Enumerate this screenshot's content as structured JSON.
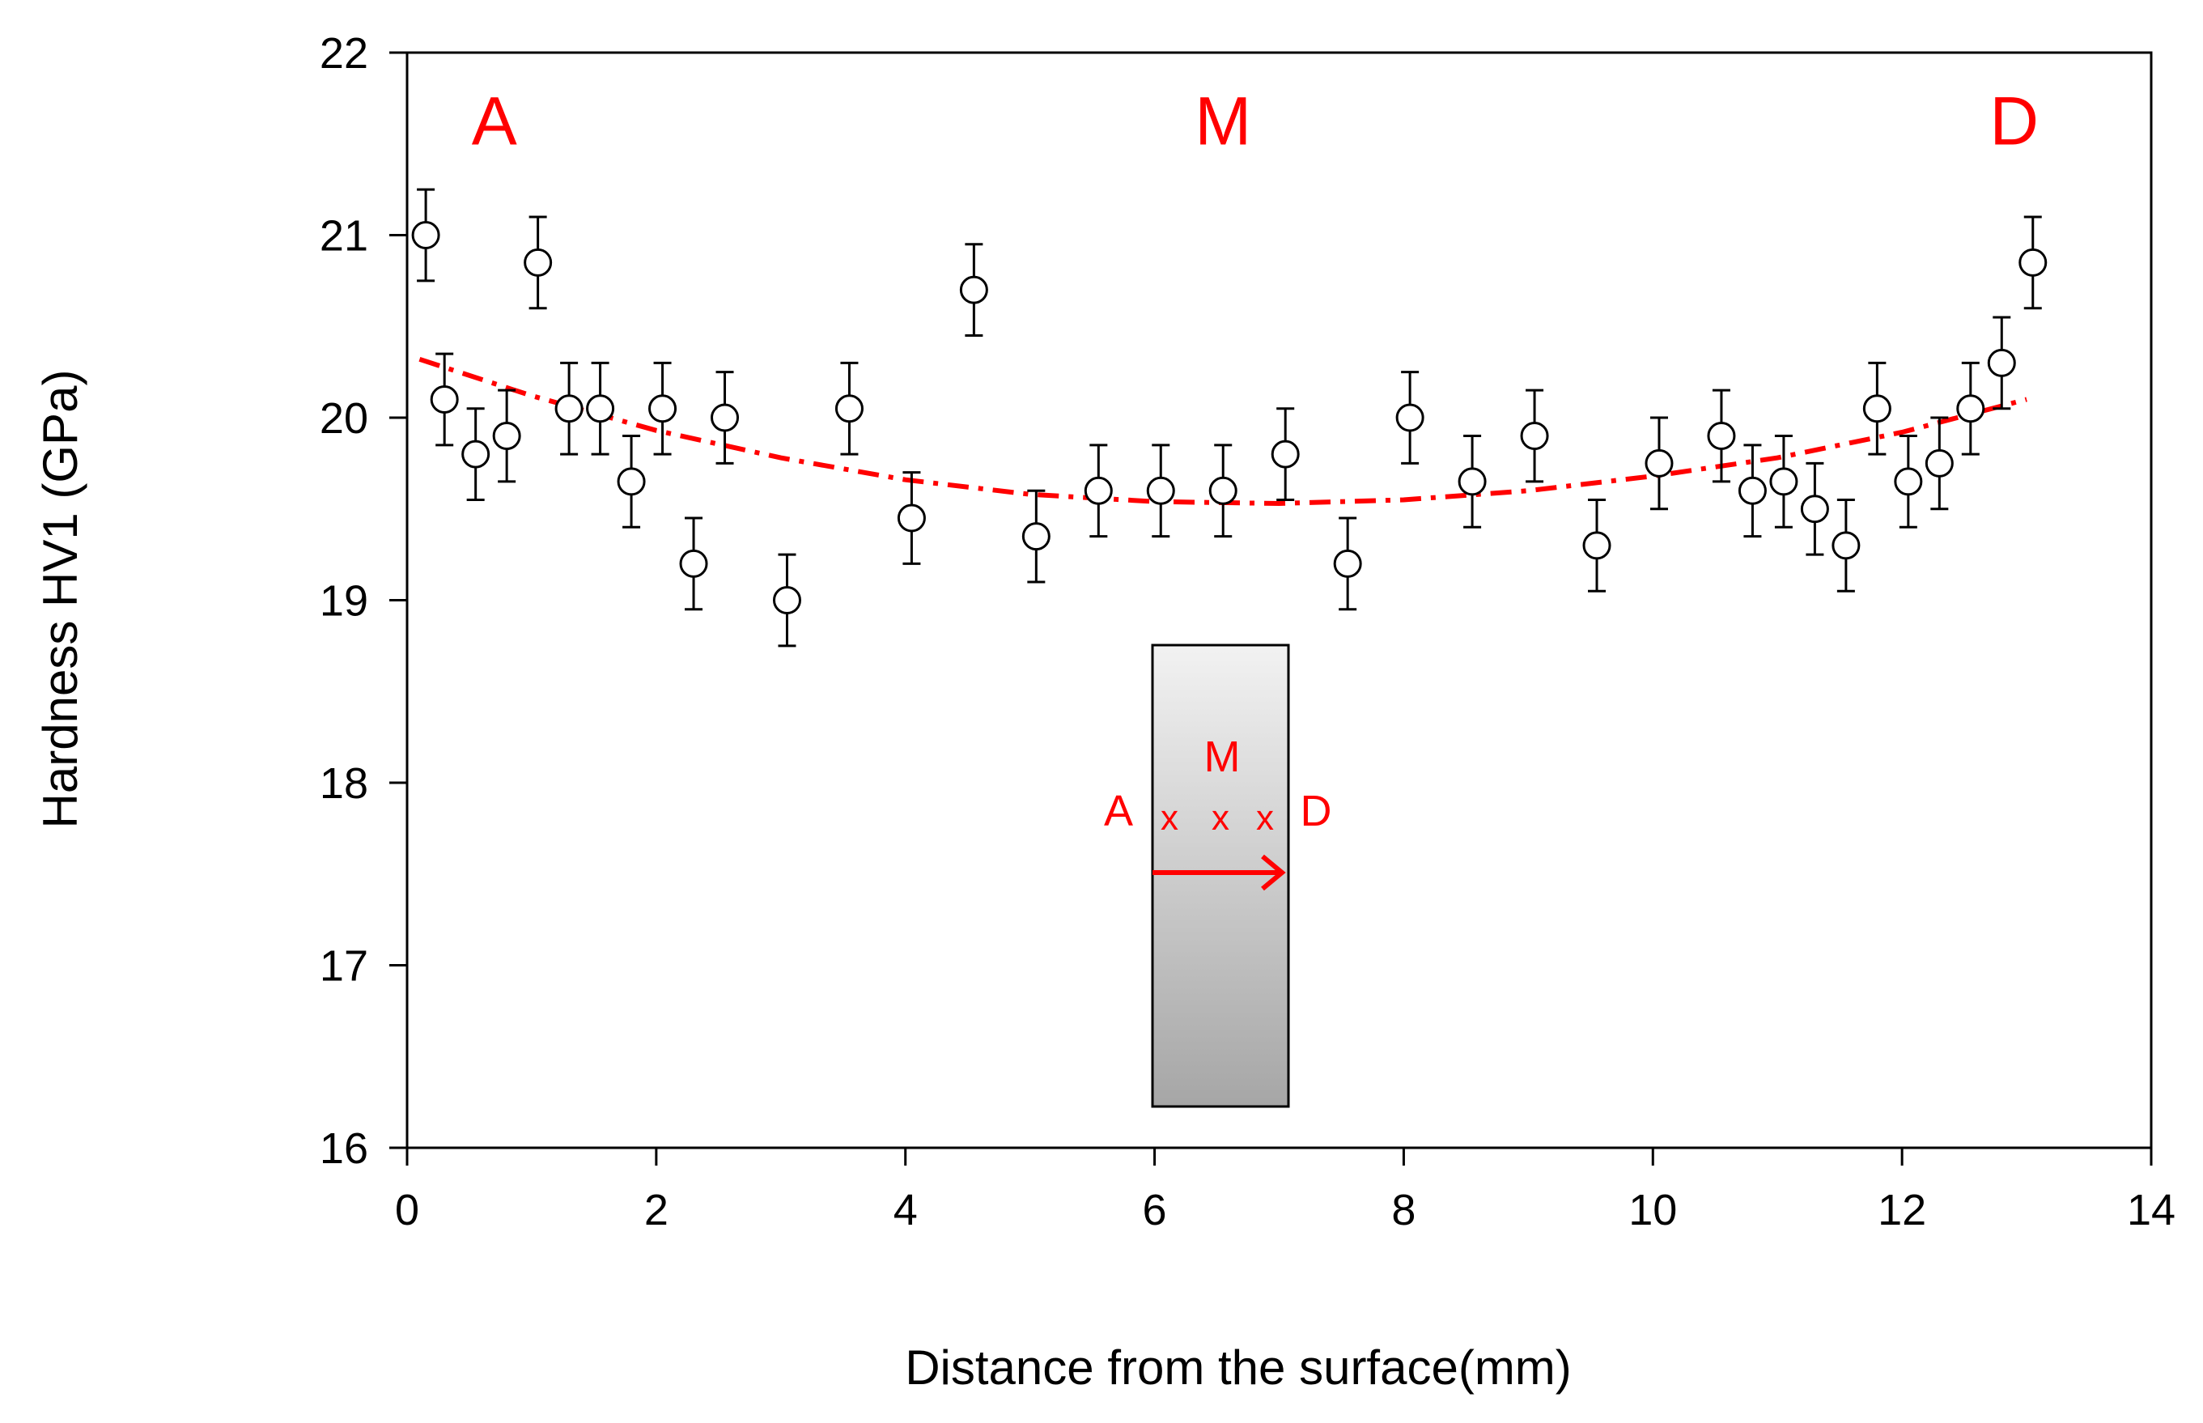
{
  "chart_data": {
    "type": "scatter",
    "title": "",
    "xlabel": "Distance from the surface(mm)",
    "ylabel": "Hardness HV1 (GPa)",
    "xlim": [
      0,
      14
    ],
    "ylim": [
      16,
      22
    ],
    "xticks": [
      0,
      2,
      4,
      6,
      8,
      10,
      12,
      14
    ],
    "yticks": [
      16,
      17,
      18,
      19,
      20,
      21,
      22
    ],
    "grid": false,
    "series": [
      {
        "name": "Hardness HV1",
        "marker": "open-circle",
        "error": 0.25,
        "points": [
          {
            "x": 0.15,
            "y": 21.0
          },
          {
            "x": 0.3,
            "y": 20.1
          },
          {
            "x": 0.55,
            "y": 19.8
          },
          {
            "x": 0.8,
            "y": 19.9
          },
          {
            "x": 1.05,
            "y": 20.85
          },
          {
            "x": 1.3,
            "y": 20.05
          },
          {
            "x": 1.55,
            "y": 20.05
          },
          {
            "x": 1.8,
            "y": 19.65
          },
          {
            "x": 2.05,
            "y": 20.05
          },
          {
            "x": 2.3,
            "y": 19.2
          },
          {
            "x": 2.55,
            "y": 20.0
          },
          {
            "x": 3.05,
            "y": 19.0
          },
          {
            "x": 3.55,
            "y": 20.05
          },
          {
            "x": 4.05,
            "y": 19.45
          },
          {
            "x": 4.55,
            "y": 20.7
          },
          {
            "x": 5.05,
            "y": 19.35
          },
          {
            "x": 5.55,
            "y": 19.6
          },
          {
            "x": 6.05,
            "y": 19.6
          },
          {
            "x": 6.55,
            "y": 19.6
          },
          {
            "x": 7.05,
            "y": 19.8
          },
          {
            "x": 7.55,
            "y": 19.2
          },
          {
            "x": 8.05,
            "y": 20.0
          },
          {
            "x": 8.55,
            "y": 19.65
          },
          {
            "x": 9.05,
            "y": 19.9
          },
          {
            "x": 9.55,
            "y": 19.3
          },
          {
            "x": 10.05,
            "y": 19.75
          },
          {
            "x": 10.55,
            "y": 19.9
          },
          {
            "x": 10.8,
            "y": 19.6
          },
          {
            "x": 11.05,
            "y": 19.65
          },
          {
            "x": 11.3,
            "y": 19.5
          },
          {
            "x": 11.55,
            "y": 19.3
          },
          {
            "x": 11.8,
            "y": 20.05
          },
          {
            "x": 12.05,
            "y": 19.65
          },
          {
            "x": 12.3,
            "y": 19.75
          },
          {
            "x": 12.55,
            "y": 20.05
          },
          {
            "x": 12.8,
            "y": 20.3
          },
          {
            "x": 13.05,
            "y": 20.85
          }
        ]
      }
    ],
    "trendline": {
      "name": "polynomial fit",
      "style": "dash-dot",
      "color": "#ff0000",
      "points": [
        {
          "x": 0.1,
          "y": 20.32
        },
        {
          "x": 1.0,
          "y": 20.12
        },
        {
          "x": 2.0,
          "y": 19.93
        },
        {
          "x": 3.0,
          "y": 19.78
        },
        {
          "x": 4.0,
          "y": 19.66
        },
        {
          "x": 5.0,
          "y": 19.58
        },
        {
          "x": 6.0,
          "y": 19.54
        },
        {
          "x": 7.0,
          "y": 19.53
        },
        {
          "x": 8.0,
          "y": 19.55
        },
        {
          "x": 9.0,
          "y": 19.6
        },
        {
          "x": 10.0,
          "y": 19.68
        },
        {
          "x": 11.0,
          "y": 19.78
        },
        {
          "x": 12.0,
          "y": 19.92
        },
        {
          "x": 13.0,
          "y": 20.1
        }
      ]
    },
    "annotations": {
      "region_labels": [
        {
          "text": "A",
          "x": 0.7,
          "y": 21.62
        },
        {
          "text": "M",
          "x": 6.55,
          "y": 21.62
        },
        {
          "text": "D",
          "x": 12.9,
          "y": 21.62
        }
      ],
      "inset": {
        "label_m": "M",
        "label_a": "A",
        "label_d": "D",
        "marker": "x",
        "arrow": "A to D"
      }
    },
    "colors": {
      "annotation": "#ff0000",
      "markers": "#000000",
      "inset_fill_top": "#f2f2f2",
      "inset_fill_bottom": "#a6a6a6"
    }
  }
}
